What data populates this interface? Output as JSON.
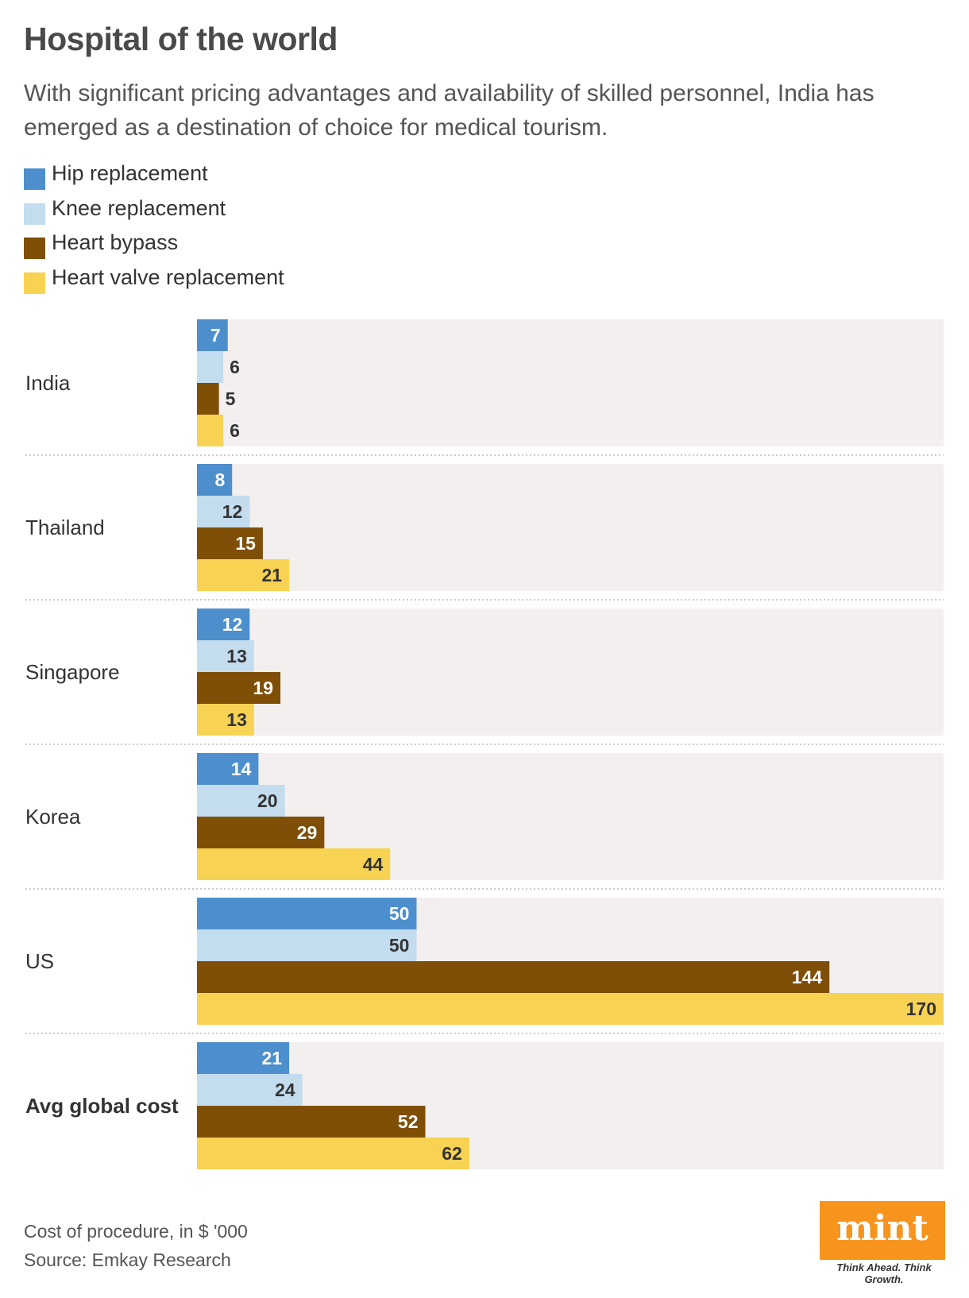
{
  "header": {
    "title": "Hospital of the world",
    "subtitle": "With significant pricing advantages and availability of skilled personnel, India has emerged as a destination of choice for medical tourism."
  },
  "legend": [
    {
      "label": "Hip replacement",
      "color": "#4d8fcc"
    },
    {
      "label": "Knee replacement",
      "color": "#c3dcee"
    },
    {
      "label": "Heart bypass",
      "color": "#7f4f07"
    },
    {
      "label": "Heart valve replacement",
      "color": "#f8d253"
    }
  ],
  "chart_data": {
    "type": "bar",
    "orientation": "horizontal",
    "categories": [
      "India",
      "Thailand",
      "Singapore",
      "Korea",
      "US",
      "Avg global cost"
    ],
    "emphasized_category": "Avg global cost",
    "series": [
      {
        "name": "Hip replacement",
        "color": "#4d8fcc",
        "label_color": "#ffffff",
        "values": [
          7,
          8,
          12,
          14,
          50,
          21
        ]
      },
      {
        "name": "Knee replacement",
        "color": "#c3dcee",
        "label_color": "#333333",
        "values": [
          6,
          12,
          13,
          20,
          50,
          24
        ]
      },
      {
        "name": "Heart bypass",
        "color": "#7f4f07",
        "label_color": "#ffffff",
        "values": [
          5,
          15,
          19,
          29,
          144,
          52
        ]
      },
      {
        "name": "Heart valve replacement",
        "color": "#f8d253",
        "label_color": "#333333",
        "values": [
          6,
          21,
          13,
          44,
          170,
          62
        ]
      }
    ],
    "xlim": [
      0,
      170
    ],
    "unit": "$ '000",
    "background_color": "#f2efee"
  },
  "footer": {
    "note": "Cost of procedure, in $ '000",
    "source": "Source: Emkay Research",
    "logo": "mint",
    "tagline": "Think Ahead. Think Growth."
  }
}
